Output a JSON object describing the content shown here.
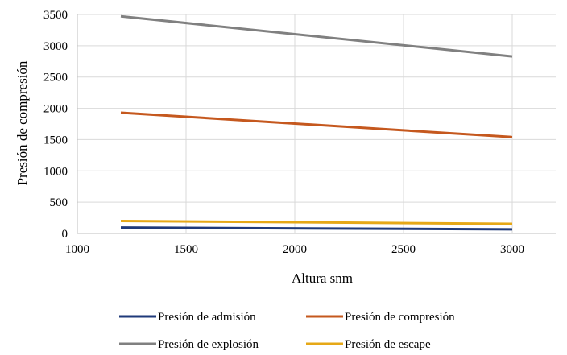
{
  "chart_data": {
    "type": "line",
    "xlabel": "Altura snm",
    "ylabel": "Presión de compresión",
    "xlim": [
      1000,
      3200
    ],
    "ylim": [
      0,
      3500
    ],
    "x_ticks": [
      1000,
      1500,
      2000,
      2500,
      3000
    ],
    "y_ticks": [
      0,
      500,
      1000,
      1500,
      2000,
      2500,
      3000,
      3500
    ],
    "grid": "on",
    "legend_position": "bottom",
    "series": [
      {
        "name": "Presión de admisión",
        "color": "#1f3a7a",
        "x": [
          1200,
          3000
        ],
        "y": [
          95,
          65
        ]
      },
      {
        "name": "Presión de compresión",
        "color": "#c5581e",
        "x": [
          1200,
          3000
        ],
        "y": [
          1930,
          1540
        ]
      },
      {
        "name": "Presión de explosión",
        "color": "#808080",
        "x": [
          1200,
          3000
        ],
        "y": [
          3470,
          2830
        ]
      },
      {
        "name": "Presión de escape",
        "color": "#e6a817",
        "x": [
          1200,
          3000
        ],
        "y": [
          200,
          155
        ]
      }
    ]
  }
}
